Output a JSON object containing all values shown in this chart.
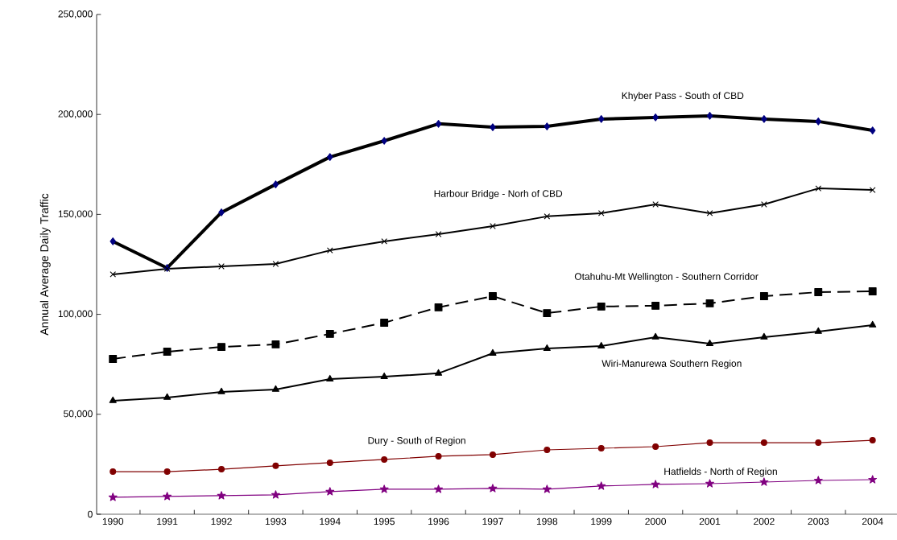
{
  "chart_data": {
    "type": "line",
    "ylabel": "Annual Average Daily Traffic",
    "categories": [
      "1990",
      "1991",
      "1992",
      "1993",
      "1994",
      "1995",
      "1996",
      "1997",
      "1998",
      "1999",
      "2000",
      "2001",
      "2002",
      "2003",
      "2004"
    ],
    "ylim": [
      0,
      250000
    ],
    "yticks": [
      {
        "value": 0,
        "label": "0"
      },
      {
        "value": 50000,
        "label": "50,000"
      },
      {
        "value": 100000,
        "label": "100,000"
      },
      {
        "value": 150000,
        "label": "150,000"
      },
      {
        "value": 200000,
        "label": "200,000"
      },
      {
        "value": 250000,
        "label": "250,000"
      }
    ],
    "grid": false,
    "legend": false,
    "series": [
      {
        "name": "Khyber Pass - South of CBD",
        "color": "#000080",
        "marker": "diamond",
        "line_style": "solid",
        "values": [
          136500,
          123200,
          151000,
          165000,
          178700,
          186800,
          195300,
          193600,
          194000,
          197700,
          198500,
          199300,
          197700,
          196500,
          192000
        ]
      },
      {
        "name": "Harbour Bridge - Norh of CBD",
        "color": "#000000",
        "marker": "cross",
        "line_style": "solid",
        "values": [
          120000,
          122800,
          124000,
          125200,
          132000,
          136500,
          140100,
          144100,
          149000,
          150600,
          155000,
          150600,
          155000,
          163000,
          162200
        ]
      },
      {
        "name": "Otahuhu-Mt Wellington - Southern Corridor",
        "color": "#000000",
        "marker": "square",
        "line_style": "dashed",
        "values": [
          77700,
          81300,
          83700,
          85000,
          90200,
          95800,
          103500,
          109100,
          100600,
          103900,
          104300,
          105500,
          109100,
          111100,
          111500
        ]
      },
      {
        "name": "Wiri-Manurewa Southern Region",
        "color": "#000000",
        "marker": "triangle",
        "line_style": "solid",
        "values": [
          56800,
          58400,
          61200,
          62400,
          67600,
          68800,
          70500,
          80500,
          82900,
          84100,
          88600,
          85300,
          88600,
          91400,
          94600
        ]
      },
      {
        "name": "Dury - South of Region",
        "color": "#800000",
        "marker": "circle",
        "line_style": "solid",
        "values": [
          21300,
          21300,
          22500,
          24200,
          25800,
          27400,
          29000,
          29800,
          32200,
          33000,
          33800,
          35800,
          35800,
          35800,
          37000
        ]
      },
      {
        "name": "Hatfields - North of  Region",
        "color": "#800080",
        "marker": "star",
        "line_style": "solid",
        "values": [
          8500,
          8900,
          9300,
          9700,
          11300,
          12500,
          12500,
          12900,
          12500,
          14100,
          14900,
          15300,
          16100,
          16900,
          17300
        ]
      }
    ]
  }
}
